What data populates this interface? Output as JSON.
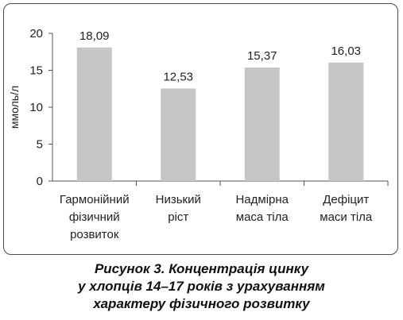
{
  "chart_data": {
    "type": "bar",
    "categories": [
      [
        "Гармонійний",
        "фізичний",
        "розвиток"
      ],
      [
        "Низький",
        "ріст"
      ],
      [
        "Надмірна",
        "маса тіла"
      ],
      [
        "Дефіцит",
        "маси тіла"
      ]
    ],
    "values": [
      18.09,
      12.53,
      15.37,
      16.03
    ],
    "value_labels": [
      "18,09",
      "12,53",
      "15,37",
      "16,03"
    ],
    "ylabel": "ммоль/л",
    "xlabel": "",
    "ylim": [
      0,
      20
    ],
    "yticks": [
      0,
      5,
      10,
      15,
      20
    ],
    "grid": false,
    "bar_color": "#c6c6c6"
  },
  "caption": [
    "Рисунок 3. Концентрація цинку",
    "у хлопців 14–17 років з урахуванням",
    "характеру фізичного розвитку"
  ]
}
